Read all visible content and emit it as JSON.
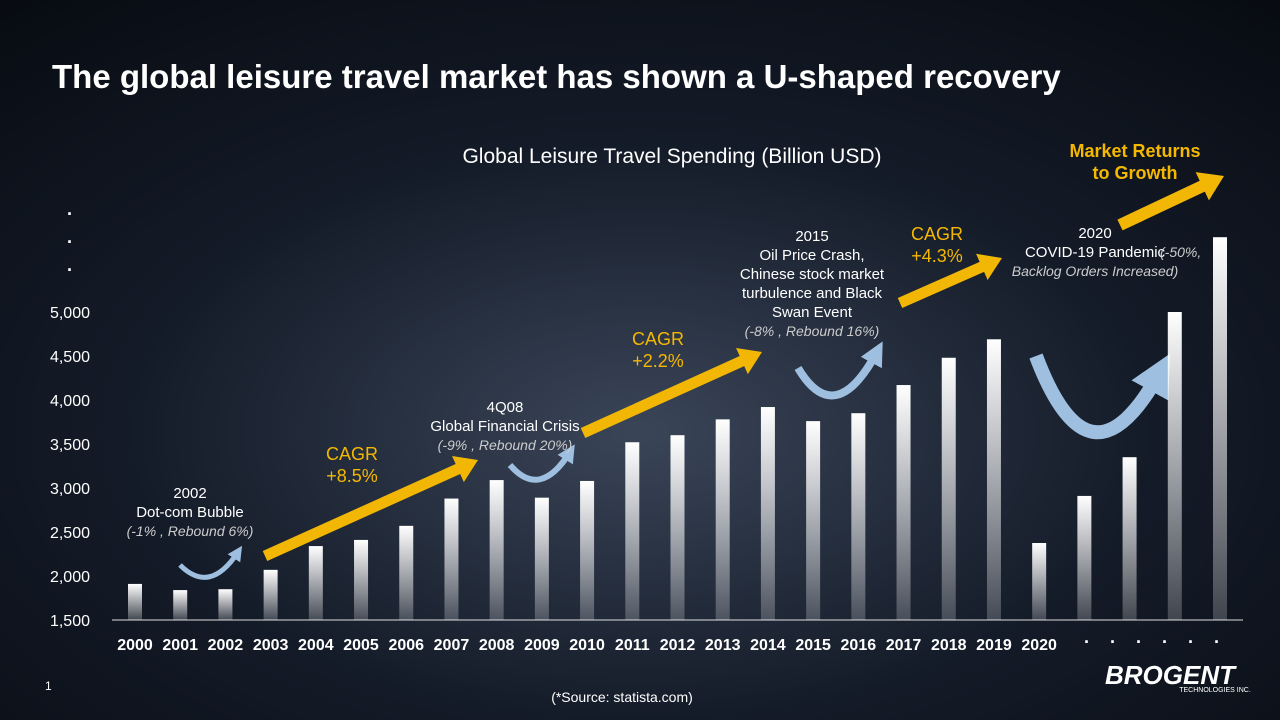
{
  "chart_data": {
    "type": "bar",
    "title": "The global leisure travel market has shown a U-shaped recovery",
    "subtitle": "Global Leisure Travel Spending (Billion USD)",
    "categories": [
      "2000",
      "2001",
      "2002",
      "2003",
      "2004",
      "2005",
      "2006",
      "2007",
      "2008",
      "2009",
      "2010",
      "2011",
      "2012",
      "2013",
      "2014",
      "2015",
      "2016",
      "2017",
      "2018",
      "2019",
      "2020",
      null,
      null,
      null,
      null
    ],
    "values": [
      1910,
      1840,
      1850,
      2070,
      2340,
      2410,
      2570,
      2880,
      3090,
      2890,
      3080,
      3520,
      3600,
      3780,
      3920,
      3760,
      3850,
      4170,
      4480,
      4690,
      2375,
      2910,
      3350,
      5000,
      5850
    ],
    "color": "#ffffff",
    "ylim": [
      1500,
      6000
    ],
    "yticks": [
      {
        "value": 1500,
        "label": "1,500"
      },
      {
        "value": 2000,
        "label": "2,000"
      },
      {
        "value": 2500,
        "label": "2,500"
      },
      {
        "value": 3000,
        "label": "3,000"
      },
      {
        "value": 3500,
        "label": "3,500"
      },
      {
        "value": 4000,
        "label": "4,000"
      },
      {
        "value": 4500,
        "label": "4,500"
      },
      {
        "value": 5000,
        "label": "5,000"
      }
    ],
    "grid": false,
    "x_ellipsis": "·    ·    ·    ·    ·    ·",
    "y_ellipsis": [
      "·",
      "·",
      "·"
    ],
    "annotations": [
      {
        "title": [
          "2002",
          "Dot-com Bubble"
        ],
        "note": [
          "(-1% , Rebound 6%)"
        ]
      },
      {
        "title": [
          "4Q08",
          "Global Financial Crisis"
        ],
        "note": [
          "(-9% , Rebound 20%)"
        ]
      },
      {
        "title": [
          "2015",
          "Oil Price Crash,",
          "Chinese stock market",
          "turbulence and Black",
          "Swan Event"
        ],
        "note": [
          "(-8% ,  Rebound 16%)"
        ]
      },
      {
        "title": [
          "2020",
          "COVID-19 Pandemic"
        ],
        "note": [
          "(-50%,",
          "Backlog Orders Increased)"
        ]
      }
    ],
    "cagr": [
      [
        "CAGR",
        "+8.5%"
      ],
      [
        "CAGR",
        "+2.2%"
      ],
      [
        "CAGR",
        "+4.3%"
      ]
    ],
    "growth_label": [
      "Market Returns",
      "to Growth"
    ]
  },
  "footer": {
    "page_number": "1",
    "source": "(*Source: statista.com)",
    "logo": "BROGENT",
    "logo_sub": "TECHNOLOGIES INC."
  }
}
